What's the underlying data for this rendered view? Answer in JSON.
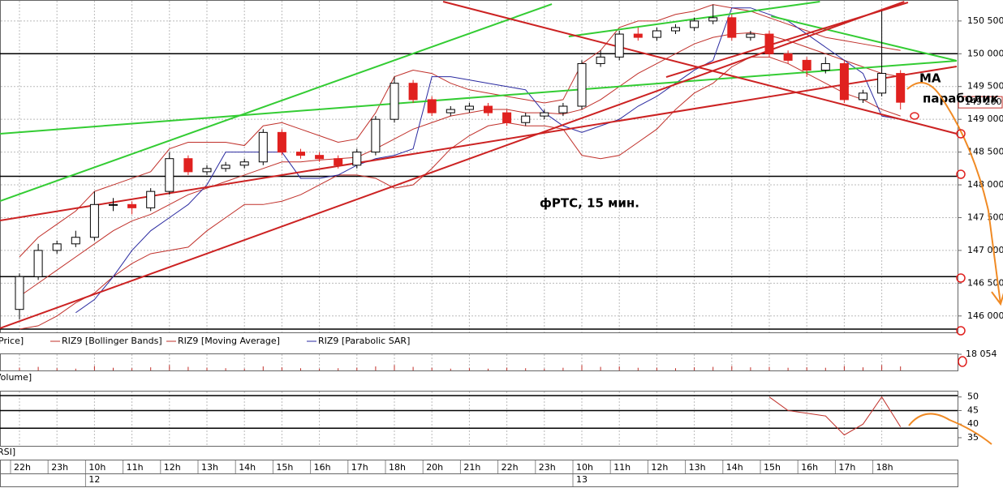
{
  "chart_data": [
    {
      "type": "candlestick",
      "name": "Price]",
      "up_color": "#ffffff",
      "down_color": "#e0211f",
      "categories": [
        "22h",
        null,
        "23h",
        null,
        "10h",
        null,
        "11h",
        null,
        "12h",
        null,
        "13h",
        null,
        "14h",
        null,
        "15h",
        null,
        "16h",
        null,
        "17h",
        null,
        "18h",
        null,
        "20h",
        null,
        "21h",
        null,
        "22h",
        null,
        "23h",
        null,
        "10h",
        null,
        "11h",
        null,
        "12h",
        null,
        "13h",
        null,
        "14h",
        null,
        "15h",
        null,
        "16h",
        null,
        "17h",
        null,
        "18h",
        null
      ],
      "days": [
        null,
        null,
        null,
        null,
        "12",
        null,
        null,
        null,
        null,
        null,
        null,
        null,
        null,
        null,
        null,
        null,
        null,
        null,
        null,
        null,
        null,
        null,
        null,
        null,
        null,
        null,
        null,
        null,
        null,
        null,
        "13",
        null,
        null,
        null,
        null,
        null,
        null,
        null,
        null,
        null,
        null,
        null,
        null,
        null,
        null,
        null,
        null,
        null
      ],
      "open": [
        146100,
        146600,
        147000,
        147100,
        147200,
        147700,
        147700,
        147650,
        147900,
        148400,
        148200,
        148250,
        148300,
        148350,
        148800,
        148500,
        148450,
        148400,
        148300,
        148500,
        149000,
        149550,
        149300,
        149100,
        149150,
        149200,
        149100,
        148950,
        149050,
        149100,
        149200,
        149850,
        149950,
        150300,
        150250,
        150350,
        150400,
        150500,
        150550,
        150250,
        150300,
        150000,
        149900,
        149750,
        149850,
        149300,
        149400,
        149700
      ],
      "high": [
        146650,
        147100,
        147150,
        147300,
        147900,
        147800,
        147750,
        147950,
        148500,
        148450,
        148300,
        148350,
        148400,
        148850,
        148850,
        148550,
        148500,
        148450,
        148550,
        149050,
        149650,
        149600,
        149350,
        149200,
        149250,
        149250,
        149150,
        149100,
        149150,
        149250,
        149900,
        150050,
        150350,
        150400,
        150400,
        150450,
        150550,
        150750,
        150600,
        150350,
        150350,
        150050,
        149950,
        149950,
        149900,
        149450,
        150650,
        149750
      ],
      "low": [
        145950,
        146550,
        146950,
        147050,
        147150,
        147600,
        147550,
        147600,
        147850,
        148150,
        148150,
        148200,
        148250,
        148300,
        148450,
        148400,
        148350,
        148250,
        148250,
        148450,
        148950,
        149250,
        149050,
        149050,
        149100,
        149050,
        148900,
        148900,
        149000,
        149050,
        149150,
        149800,
        149900,
        150200,
        150200,
        150300,
        150350,
        150450,
        150200,
        150200,
        149950,
        149850,
        149650,
        149700,
        149250,
        149250,
        149350,
        149150
      ],
      "close": [
        146600,
        147000,
        147100,
        147200,
        147700,
        147700,
        147650,
        147900,
        148400,
        148200,
        148250,
        148300,
        148350,
        148800,
        148500,
        148450,
        148400,
        148300,
        148500,
        149000,
        149550,
        149300,
        149100,
        149150,
        149200,
        149100,
        148950,
        149050,
        149100,
        149200,
        149850,
        149950,
        150300,
        150250,
        150350,
        150400,
        150500,
        150550,
        150250,
        150300,
        150000,
        149900,
        149750,
        149850,
        149300,
        149400,
        149700,
        149260
      ],
      "series": [
        {
          "name": "RIZ9 [Bollinger Bands]",
          "color": "#c0302a",
          "upper": [
            146900,
            147200,
            147400,
            147600,
            147900,
            148000,
            148100,
            148200,
            148550,
            148650,
            148650,
            148650,
            148600,
            148900,
            148950,
            148850,
            148750,
            148650,
            148700,
            149100,
            149650,
            149750,
            149700,
            149550,
            149450,
            149400,
            149350,
            149300,
            149250,
            149300,
            149850,
            150050,
            150400,
            150500,
            150500,
            150600,
            150650,
            150750,
            150700,
            150650,
            150550,
            150450,
            150350,
            150250,
            150200,
            150150,
            150100,
            150050
          ],
          "lower": [
            145800,
            145850,
            146000,
            146200,
            146350,
            146600,
            146800,
            146950,
            147000,
            147050,
            147300,
            147500,
            147700,
            147700,
            147750,
            147850,
            148000,
            148150,
            148150,
            148100,
            147950,
            148000,
            148250,
            148550,
            148750,
            148900,
            148950,
            148900,
            148900,
            148850,
            148450,
            148400,
            148450,
            148650,
            148850,
            149150,
            149400,
            149550,
            149800,
            149950,
            149950,
            149850,
            149700,
            149550,
            149400,
            149300,
            149150,
            149050
          ]
        },
        {
          "name": "RIZ9 [Moving Average]",
          "color": "#c0302a",
          "values": [
            146300,
            146500,
            146700,
            146900,
            147100,
            147300,
            147450,
            147550,
            147700,
            147850,
            147950,
            148050,
            148150,
            148250,
            148350,
            148350,
            148380,
            148400,
            148420,
            148550,
            148700,
            148850,
            148950,
            149050,
            149100,
            149150,
            149150,
            149100,
            149100,
            149080,
            149150,
            149300,
            149500,
            149700,
            149850,
            150000,
            150150,
            150250,
            150300,
            150320,
            150280,
            150200,
            150100,
            150000,
            149900,
            149800,
            149700,
            149650
          ]
        },
        {
          "name": "RIZ9 [Parabolic SAR]",
          "color": "#2a2aa0",
          "values": [
            null,
            null,
            null,
            146050,
            146250,
            146600,
            147000,
            147300,
            147500,
            147700,
            148000,
            148500,
            148500,
            148500,
            148500,
            148100,
            148100,
            148150,
            148300,
            148400,
            148450,
            148550,
            149650,
            149650,
            149600,
            149550,
            149500,
            149450,
            149100,
            148900,
            148800,
            148900,
            149000,
            149200,
            149350,
            149550,
            149750,
            149900,
            150700,
            150700,
            150600,
            150500,
            150300,
            150100,
            149900,
            149700,
            149050,
            149000
          ]
        }
      ],
      "ylim": [
        145750,
        150820
      ],
      "yticks": [
        {
          "value": 146000,
          "label": "146 000"
        },
        {
          "value": 146500,
          "label": "146 500"
        },
        {
          "value": 147000,
          "label": "147 000"
        },
        {
          "value": 147500,
          "label": "147 500"
        },
        {
          "value": 148000,
          "label": "148 000"
        },
        {
          "value": 148500,
          "label": "148 500"
        },
        {
          "value": 149000,
          "label": "149 000"
        },
        {
          "value": 149500,
          "label": "149 500"
        },
        {
          "value": 150000,
          "label": "150 000"
        },
        {
          "value": 150500,
          "label": "150 500"
        }
      ],
      "last_price": {
        "value": 149260,
        "label": "149 260"
      },
      "hlines": [
        150000,
        148130,
        146600,
        145800
      ],
      "trendlines": [
        {
          "color": "#33cc33",
          "x": [
            -1.04,
            28.4
          ],
          "y": [
            147753,
            150758
          ]
        },
        {
          "color": "#33cc33",
          "x": [
            -1.04,
            50.0
          ],
          "y": [
            148780,
            149893
          ]
        },
        {
          "color": "#33cc33",
          "x": [
            29.3,
            42.7
          ],
          "y": [
            150263,
            150795
          ]
        },
        {
          "color": "#33cc33",
          "x": [
            40.1,
            50.0
          ],
          "y": [
            150573,
            149893
          ]
        },
        {
          "color": "#cc2222",
          "x": [
            -1.04,
            47.2
          ],
          "y": [
            145812,
            150795
          ]
        },
        {
          "color": "#cc2222",
          "x": [
            -1.04,
            50.0
          ],
          "y": [
            147457,
            149806
          ]
        },
        {
          "color": "#cc2222",
          "x": [
            22.6,
            50.0
          ],
          "y": [
            150795,
            148780
          ]
        },
        {
          "color": "#cc2222",
          "x": [
            34.5,
            47.4
          ],
          "y": [
            149645,
            150783
          ]
        }
      ],
      "grid": true,
      "annotations": [
        "фРТС,  15 мин.",
        "MA",
        "параболик"
      ]
    },
    {
      "type": "bar",
      "name": "Volume]",
      "color": "#c0302a",
      "values": [
        3000,
        4000,
        2500,
        2000,
        5000,
        3000,
        2500,
        3500,
        6000,
        4000,
        3000,
        2500,
        2000,
        4500,
        3500,
        2500,
        2000,
        2500,
        3000,
        4500,
        6000,
        4000,
        3000,
        2000,
        2500,
        2000,
        3000,
        2500,
        2000,
        3000,
        6000,
        4000,
        4500,
        3000,
        3000,
        2500,
        3500,
        4000,
        5000,
        3500,
        4000,
        3000,
        3500,
        3000,
        5000,
        3500,
        6000,
        4500
      ],
      "ylim": [
        0,
        18054
      ],
      "yticks": [
        {
          "value": 18054,
          "label": "18 054"
        }
      ]
    },
    {
      "type": "line",
      "name": "RSI]",
      "color": "#c0302a",
      "values": [
        null,
        null,
        null,
        null,
        null,
        null,
        null,
        null,
        null,
        null,
        null,
        null,
        null,
        null,
        null,
        null,
        null,
        null,
        null,
        null,
        null,
        null,
        null,
        null,
        null,
        null,
        null,
        47,
        null,
        null,
        null,
        null,
        null,
        null,
        null,
        null,
        null,
        null,
        null,
        null,
        50,
        45,
        44,
        43,
        36,
        40,
        50,
        39
      ],
      "ylim": [
        32,
        52
      ],
      "yticks": [
        35,
        40,
        45,
        50
      ],
      "hlines": [
        50.5,
        45,
        38.5
      ]
    }
  ]
}
